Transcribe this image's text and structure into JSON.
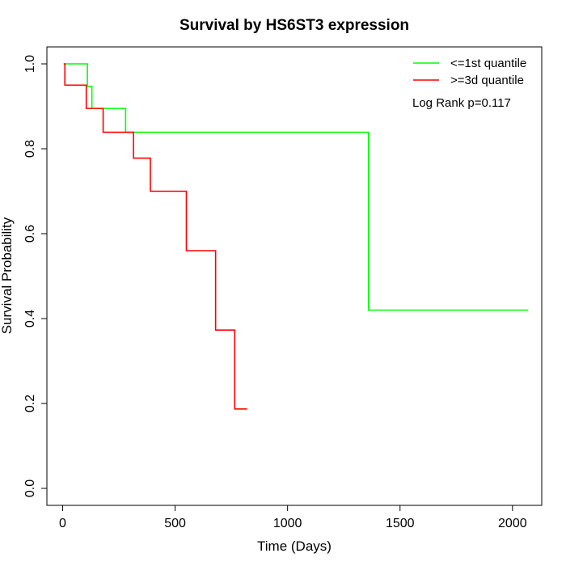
{
  "chart_data": {
    "type": "line",
    "step": true,
    "title": "Survival by HS6ST3 expression",
    "xlabel": "Time (Days)",
    "ylabel": "Survival Probability",
    "xlim": [
      -70,
      2130
    ],
    "ylim": [
      -0.04,
      1.04
    ],
    "xticks": [
      0,
      500,
      1000,
      1500,
      2000
    ],
    "xtick_labels": [
      "0",
      "500",
      "1000",
      "1500",
      "2000"
    ],
    "yticks": [
      0,
      0.2,
      0.4,
      0.6,
      0.8,
      1
    ],
    "ytick_labels": [
      "0.0",
      "0.2",
      "0.4",
      "0.6",
      "0.8",
      "1.0"
    ],
    "grid": false,
    "legend_position": "top-right",
    "annotation": "Log Rank p=0.117",
    "series": [
      {
        "name": "<=1st quantile",
        "color": "#00ff00",
        "x": [
          5,
          110,
          130,
          280,
          1360,
          2070
        ],
        "y": [
          1.0,
          0.947,
          0.895,
          0.839,
          0.42,
          0.42
        ]
      },
      {
        "name": ">=3d quantile",
        "color": "#ff0000",
        "x": [
          5,
          10,
          105,
          180,
          315,
          390,
          550,
          680,
          765,
          820
        ],
        "y": [
          1.0,
          0.95,
          0.895,
          0.839,
          0.778,
          0.7,
          0.56,
          0.373,
          0.187,
          0.187
        ]
      }
    ]
  }
}
